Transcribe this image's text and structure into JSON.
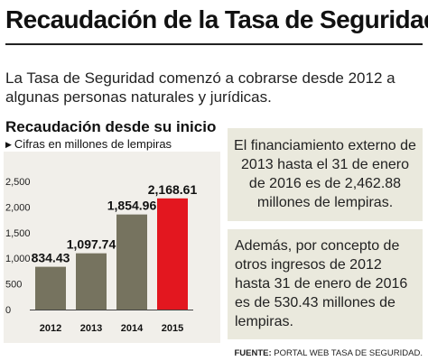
{
  "title": "Recaudación de la Tasa de Seguridad",
  "intro": "La Tasa de Seguridad comenzó a cobrarse desde 2012 a  algunas personas naturales y jurídicas.",
  "box1_text": "El financiamiento externo de 2013 hasta el 31 de enero de 2016 es de 2,462.88 millones de lempiras.",
  "box2_text": "Además, por concepto de otros ingresos de 2012 hasta 31 de enero de 2016 es de 530.43 millones de lempiras.",
  "source": {
    "label": "FUENTE:",
    "text": "PORTAL WEB TASA DE SEGURIDAD."
  },
  "colors": {
    "bar_default": "#76735f",
    "bar_highlight": "#e3171f",
    "panel": "#eae9dd",
    "chart_background": "#f1efea"
  },
  "chart_data": {
    "type": "bar",
    "title": "Recaudación desde su inicio",
    "subtitle": "Cifras en millones de lempiras",
    "categories": [
      "2012",
      "2013",
      "2014",
      "2015"
    ],
    "values": [
      834.43,
      1097.74,
      1854.96,
      2168.61
    ],
    "data_labels": [
      "834.43",
      "1,097.74",
      "1,854.96",
      "2,168.61"
    ],
    "y_ticks": [
      0,
      500,
      1000,
      1500,
      2000,
      2500
    ],
    "y_tick_labels": [
      "0",
      "500",
      "1,000",
      "1,500",
      "2,000",
      "2,500"
    ],
    "ylim": [
      0,
      2500
    ],
    "grid": false,
    "highlight_index": 3
  }
}
